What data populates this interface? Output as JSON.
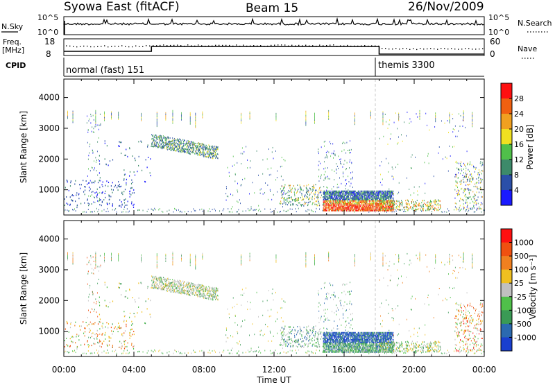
{
  "header": {
    "station": "Syowa East (fitACF)",
    "beam": "Beam 15",
    "date": "26/Nov/2009"
  },
  "top_panels": {
    "nsky_label": "N.Sky",
    "nsky_top": "10^5",
    "nsky_bottom": "10^0",
    "nsearch_label": "N.Search",
    "nsearch_top": "10^5",
    "nsearch_bottom": "10^0",
    "freq_label_1": "Freq.",
    "freq_label_2": "[MHz]",
    "freq_top": "18",
    "freq_bottom": "8",
    "nave_label": "Nave",
    "nave_top": "60",
    "nave_bottom": "0",
    "cpid_label": "CPID",
    "cpid_mode_1": "normal (fast) 151",
    "cpid_mode_2": "themis 3300"
  },
  "axes": {
    "ylabel": "Slant Range [km]",
    "xlabel": "Time UT",
    "yticks": [
      "4000",
      "3000",
      "2000",
      "1000"
    ],
    "xticks": [
      "00:00",
      "04:00",
      "08:00",
      "12:00",
      "16:00",
      "20:00",
      "00:00"
    ]
  },
  "chart_data": [
    {
      "type": "heatmap",
      "panel": "power",
      "colorbar_label": "Power [dB]",
      "colorbar_ticks": [
        "28",
        "24",
        "20",
        "16",
        "12",
        "8",
        "4"
      ],
      "colors": [
        "#1a1aff",
        "#2b4fa8",
        "#3d8a6a",
        "#50c04a",
        "#f0e020",
        "#f0a020",
        "#f06010",
        "#ff1010"
      ],
      "x_range_hours": [
        0,
        24
      ],
      "y_range_km": [
        180,
        4600
      ],
      "mode_change_hour": 18
    },
    {
      "type": "heatmap",
      "panel": "velocity",
      "colorbar_label": "Velocity [m s⁻¹]",
      "colorbar_ticks": [
        "1000",
        "500",
        "100",
        "25",
        "-25",
        "-100",
        "-500",
        "-1000"
      ],
      "colors": [
        "#1a3fcf",
        "#2b6ab0",
        "#3a9a55",
        "#50c04a",
        "#c0c0c0",
        "#f0c020",
        "#f08020",
        "#f05010",
        "#ff1010"
      ],
      "x_range_hours": [
        0,
        24
      ],
      "y_range_km": [
        180,
        4600
      ],
      "mode_change_hour": 18
    }
  ]
}
